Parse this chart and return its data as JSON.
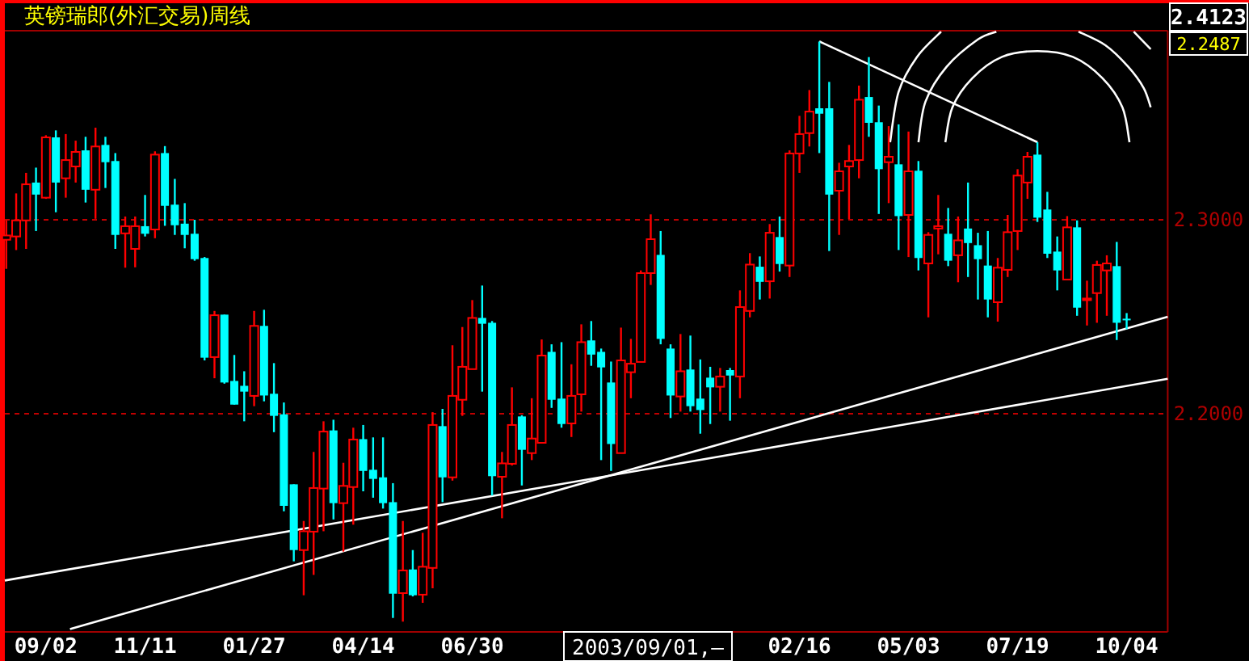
{
  "chart_data": {
    "type": "candlestick",
    "title": "英镑瑞郎(外汇交易)周线",
    "x": [
      "2002-08-05",
      "2002-08-12",
      "2002-08-19",
      "2002-08-26",
      "2002-09-02",
      "2002-09-09",
      "2002-09-16",
      "2002-09-23",
      "2002-09-30",
      "2002-10-07",
      "2002-10-14",
      "2002-10-21",
      "2002-10-28",
      "2002-11-04",
      "2002-11-11",
      "2002-11-18",
      "2002-11-25",
      "2002-12-02",
      "2002-12-09",
      "2002-12-16",
      "2002-12-23",
      "2002-12-30",
      "2003-01-06",
      "2003-01-13",
      "2003-01-20",
      "2003-01-27",
      "2003-02-03",
      "2003-02-10",
      "2003-02-17",
      "2003-02-24",
      "2003-03-03",
      "2003-03-10",
      "2003-03-17",
      "2003-03-24",
      "2003-03-31",
      "2003-04-07",
      "2003-04-14",
      "2003-04-21",
      "2003-04-28",
      "2003-05-05",
      "2003-05-12",
      "2003-05-19",
      "2003-05-26",
      "2003-06-02",
      "2003-06-09",
      "2003-06-16",
      "2003-06-23",
      "2003-06-30",
      "2003-07-07",
      "2003-07-14",
      "2003-07-21",
      "2003-07-28",
      "2003-08-04",
      "2003-08-11",
      "2003-08-18",
      "2003-08-25",
      "2003-09-01",
      "2003-09-08",
      "2003-09-15",
      "2003-09-22",
      "2003-09-29",
      "2003-10-06",
      "2003-10-13",
      "2003-10-20",
      "2003-10-27",
      "2003-11-03",
      "2003-11-10",
      "2003-11-17",
      "2003-11-24",
      "2003-12-01",
      "2003-12-08",
      "2003-12-15",
      "2003-12-22",
      "2003-12-29",
      "2004-01-05",
      "2004-01-12",
      "2004-01-19",
      "2004-01-26",
      "2004-02-02",
      "2004-02-09",
      "2004-02-16",
      "2004-02-23",
      "2004-03-01",
      "2004-03-08",
      "2004-03-15",
      "2004-03-22",
      "2004-03-29",
      "2004-04-05",
      "2004-04-12",
      "2004-04-19",
      "2004-04-26",
      "2004-05-03",
      "2004-05-10",
      "2004-05-17",
      "2004-05-24",
      "2004-05-31",
      "2004-06-07",
      "2004-06-14",
      "2004-06-21",
      "2004-06-28",
      "2004-07-05",
      "2004-07-12",
      "2004-07-19",
      "2004-07-26",
      "2004-08-02",
      "2004-08-09",
      "2004-08-16",
      "2004-08-23",
      "2004-08-30",
      "2004-09-06",
      "2004-09-13",
      "2004-09-20",
      "2004-09-27",
      "2004-10-04"
    ],
    "ohlc": [
      [
        2.2897,
        2.2997,
        2.2747,
        2.2919
      ],
      [
        2.2914,
        2.3136,
        2.2844,
        2.2997
      ],
      [
        2.2997,
        2.3242,
        2.285,
        2.3183
      ],
      [
        2.3192,
        2.3269,
        2.2942,
        2.313
      ],
      [
        2.3114,
        2.3436,
        2.3108,
        2.3425
      ],
      [
        2.3425,
        2.3461,
        2.3039,
        2.3192
      ],
      [
        2.3214,
        2.3442,
        2.3114,
        2.3308
      ],
      [
        2.3275,
        2.3408,
        2.3192,
        2.335
      ],
      [
        2.3358,
        2.3428,
        2.3089,
        2.3155
      ],
      [
        2.3155,
        2.3475,
        2.3005,
        2.3378
      ],
      [
        2.3386,
        2.3428,
        2.3164,
        2.3297
      ],
      [
        2.3303,
        2.3344,
        2.285,
        2.2922
      ],
      [
        2.293,
        2.3017,
        2.2753,
        2.2967
      ],
      [
        2.285,
        2.3017,
        2.2755,
        2.2967
      ],
      [
        2.2967,
        2.3128,
        2.2914,
        2.2928
      ],
      [
        2.295,
        2.3353,
        2.2905,
        2.3336
      ],
      [
        2.3344,
        2.338,
        2.2969,
        2.3072
      ],
      [
        2.3078,
        2.3211,
        2.2922,
        2.2972
      ],
      [
        2.298,
        2.3086,
        2.2853,
        2.2922
      ],
      [
        2.2928,
        2.3,
        2.2789,
        2.2797
      ],
      [
        2.2803,
        2.2808,
        2.2275,
        2.2289
      ],
      [
        2.2292,
        2.253,
        2.2183,
        2.2508
      ],
      [
        2.2511,
        2.2511,
        2.2155,
        2.2161
      ],
      [
        2.2169,
        2.2303,
        2.2047,
        2.2047
      ],
      [
        2.2144,
        2.2219,
        2.1961,
        2.2114
      ],
      [
        2.2092,
        2.253,
        2.2039,
        2.2453
      ],
      [
        2.2453,
        2.2536,
        2.2064,
        2.2094
      ],
      [
        2.2103,
        2.2261,
        2.1905,
        2.1989
      ],
      [
        2.1997,
        2.2058,
        2.1497,
        2.1525
      ],
      [
        2.1636,
        2.1636,
        2.1239,
        2.1297
      ],
      [
        2.1297,
        2.1447,
        2.1064,
        2.1394
      ],
      [
        2.1392,
        2.1803,
        2.1169,
        2.1617
      ],
      [
        2.1614,
        2.1961,
        2.1394,
        2.1908
      ],
      [
        2.1914,
        2.1969,
        2.1455,
        2.1539
      ],
      [
        2.1539,
        2.1747,
        2.1289,
        2.1628
      ],
      [
        2.1622,
        2.1928,
        2.1428,
        2.1867
      ],
      [
        2.1869,
        2.1942,
        2.16,
        2.1705
      ],
      [
        2.1711,
        2.1878,
        2.1567,
        2.1664
      ],
      [
        2.1672,
        2.1878,
        2.1511,
        2.1539
      ],
      [
        2.1544,
        2.1642,
        2.0947,
        2.1072
      ],
      [
        2.1075,
        2.1447,
        2.0928,
        2.1192
      ],
      [
        2.1197,
        2.1297,
        2.1058,
        2.1064
      ],
      [
        2.1067,
        2.1386,
        2.1025,
        2.1211
      ],
      [
        2.1205,
        2.2008,
        2.11,
        2.1942
      ],
      [
        2.1936,
        2.2025,
        2.1544,
        2.1672
      ],
      [
        2.1672,
        2.2353,
        2.1655,
        2.2092
      ],
      [
        2.2072,
        2.2447,
        2.1989,
        2.2242
      ],
      [
        2.223,
        2.2586,
        2.223,
        2.2494
      ],
      [
        2.2494,
        2.2661,
        2.2114,
        2.2464
      ],
      [
        2.2469,
        2.2478,
        2.1578,
        2.1678
      ],
      [
        2.1675,
        2.1803,
        2.1461,
        2.1744
      ],
      [
        2.1742,
        2.2136,
        2.1733,
        2.1942
      ],
      [
        2.1986,
        2.1992,
        2.163,
        2.1814
      ],
      [
        2.1797,
        2.208,
        2.1761,
        2.1872
      ],
      [
        2.185,
        2.2383,
        2.185,
        2.23
      ],
      [
        2.2319,
        2.2358,
        2.203,
        2.2072
      ],
      [
        2.2078,
        2.2369,
        2.1928,
        2.1947
      ],
      [
        2.195,
        2.2255,
        2.188,
        2.2092
      ],
      [
        2.21,
        2.2461,
        2.2011,
        2.2369
      ],
      [
        2.2378,
        2.2478,
        2.2247,
        2.2305
      ],
      [
        2.2319,
        2.2336,
        2.1761,
        2.2239
      ],
      [
        2.2161,
        2.2269,
        2.1705,
        2.1844
      ],
      [
        2.1797,
        2.2444,
        2.1797,
        2.2275
      ],
      [
        2.2214,
        2.2386,
        2.208,
        2.2258
      ],
      [
        2.2267,
        2.2739,
        2.2267,
        2.2725
      ],
      [
        2.2725,
        2.3028,
        2.2664,
        2.29
      ],
      [
        2.2819,
        2.2942,
        2.2358,
        2.2386
      ],
      [
        2.2336,
        2.2358,
        2.1978,
        2.2094
      ],
      [
        2.2089,
        2.2411,
        2.2011,
        2.2219
      ],
      [
        2.2228,
        2.2403,
        2.2011,
        2.2039
      ],
      [
        2.2078,
        2.228,
        2.1897,
        2.2019
      ],
      [
        2.2186,
        2.2242,
        2.1947,
        2.2136
      ],
      [
        2.2139,
        2.2236,
        2.2011,
        2.2192
      ],
      [
        2.2225,
        2.2236,
        2.1964,
        2.2197
      ],
      [
        2.2192,
        2.2636,
        2.208,
        2.255
      ],
      [
        2.253,
        2.2828,
        2.2497,
        2.2769
      ],
      [
        2.2758,
        2.2811,
        2.2589,
        2.268
      ],
      [
        2.2683,
        2.2978,
        2.2594,
        2.2933
      ],
      [
        2.2911,
        2.3017,
        2.2733,
        2.2772
      ],
      [
        2.2764,
        2.3358,
        2.2705,
        2.3342
      ],
      [
        2.3342,
        2.3536,
        2.3242,
        2.3442
      ],
      [
        2.3447,
        2.3669,
        2.3378,
        2.3558
      ],
      [
        2.3575,
        2.3919,
        2.3344,
        2.3547
      ],
      [
        2.3575,
        2.3711,
        2.2839,
        2.313
      ],
      [
        2.315,
        2.3294,
        2.2922,
        2.325
      ],
      [
        2.3275,
        2.3386,
        2.3003,
        2.3303
      ],
      [
        2.3308,
        2.3692,
        2.3214,
        2.3619
      ],
      [
        2.3633,
        2.3839,
        2.3428,
        2.35
      ],
      [
        2.3503,
        2.3589,
        2.303,
        2.3261
      ],
      [
        2.3297,
        2.3483,
        2.3086,
        2.3325
      ],
      [
        2.3286,
        2.3492,
        2.2844,
        2.3019
      ],
      [
        2.3025,
        2.3455,
        2.2808,
        2.325
      ],
      [
        2.3253,
        2.3303,
        2.2739,
        2.2803
      ],
      [
        2.2775,
        2.2936,
        2.2497,
        2.2922
      ],
      [
        2.2955,
        2.3128,
        2.2822,
        2.2967
      ],
      [
        2.2928,
        2.3061,
        2.2761,
        2.2789
      ],
      [
        2.2817,
        2.3017,
        2.2678,
        2.2894
      ],
      [
        2.2955,
        2.3192,
        2.2705,
        2.288
      ],
      [
        2.2869,
        2.2933,
        2.2589,
        2.2797
      ],
      [
        2.2764,
        2.2942,
        2.2497,
        2.2589
      ],
      [
        2.2575,
        2.2803,
        2.2475,
        2.2753
      ],
      [
        2.2742,
        2.3025,
        2.2705,
        2.2936
      ],
      [
        2.2942,
        2.3261,
        2.2844,
        2.3228
      ],
      [
        2.3192,
        2.335,
        2.3108,
        2.3325
      ],
      [
        2.3336,
        2.34,
        2.2989,
        2.3011
      ],
      [
        2.3053,
        2.3144,
        2.2803,
        2.2825
      ],
      [
        2.2836,
        2.2914,
        2.2636,
        2.2739
      ],
      [
        2.2692,
        2.3019,
        2.2692,
        2.2961
      ],
      [
        2.2961,
        2.2997,
        2.2505,
        2.2547
      ],
      [
        2.2586,
        2.2686,
        2.2455,
        2.2594
      ],
      [
        2.2622,
        2.2789,
        2.2469,
        2.2767
      ],
      [
        2.2739,
        2.2817,
        2.2505,
        2.2775
      ],
      [
        2.2761,
        2.2886,
        2.238,
        2.2469
      ],
      [
        2.249,
        2.2519,
        2.2436,
        2.2487
      ]
    ],
    "colors": [
      "#ff0000",
      "#ff0000",
      "#ff0000",
      "#00ffff",
      "#ff0000",
      "#00ffff",
      "#ff0000",
      "#ff0000",
      "#00ffff",
      "#ff0000",
      "#00ffff",
      "#00ffff",
      "#ff0000",
      "#ff0000",
      "#00ffff",
      "#ff0000",
      "#00ffff",
      "#00ffff",
      "#00ffff",
      "#00ffff",
      "#00ffff",
      "#ff0000",
      "#00ffff",
      "#00ffff",
      "#00ffff",
      "#ff0000",
      "#00ffff",
      "#00ffff",
      "#00ffff",
      "#00ffff",
      "#ff0000",
      "#ff0000",
      "#ff0000",
      "#00ffff",
      "#ff0000",
      "#ff0000",
      "#00ffff",
      "#00ffff",
      "#00ffff",
      "#00ffff",
      "#ff0000",
      "#00ffff",
      "#ff0000",
      "#ff0000",
      "#00ffff",
      "#ff0000",
      "#ff0000",
      "#ff0000",
      "#00ffff",
      "#00ffff",
      "#ff0000",
      "#ff0000",
      "#00ffff",
      "#ff0000",
      "#ff0000",
      "#00ffff",
      "#00ffff",
      "#ff0000",
      "#ff0000",
      "#00ffff",
      "#00ffff",
      "#00ffff",
      "#ff0000",
      "#ff0000",
      "#ff0000",
      "#ff0000",
      "#00ffff",
      "#00ffff",
      "#ff0000",
      "#00ffff",
      "#00ffff",
      "#00ffff",
      "#ff0000",
      "#00ffff",
      "#ff0000",
      "#ff0000",
      "#00ffff",
      "#ff0000",
      "#00ffff",
      "#ff0000",
      "#ff0000",
      "#ff0000",
      "#00ffff",
      "#00ffff",
      "#ff0000",
      "#ff0000",
      "#ff0000",
      "#00ffff",
      "#00ffff",
      "#ff0000",
      "#00ffff",
      "#ff0000",
      "#00ffff",
      "#ff0000",
      "#ff0000",
      "#00ffff",
      "#ff0000",
      "#00ffff",
      "#00ffff",
      "#00ffff",
      "#ff0000",
      "#ff0000",
      "#ff0000",
      "#ff0000",
      "#00ffff",
      "#00ffff",
      "#00ffff",
      "#ff0000",
      "#00ffff",
      "#ff0000",
      "#ff0000",
      "#ff0000",
      "#00ffff",
      "#00ffff"
    ],
    "series": [
      {
        "type": "line",
        "color": "#ffffff",
        "x": [
          "2002-08-04",
          "2004-11-02"
        ],
        "values": [
          2.114,
          2.218
        ]
      },
      {
        "type": "line",
        "color": "#ffffff",
        "x": [
          "2002-09-19",
          "2004-11-02"
        ],
        "values": [
          2.089,
          2.25
        ]
      },
      {
        "type": "line",
        "color": "#ffffff",
        "x": [
          "2004-03-01",
          "2004-08-02"
        ],
        "values": [
          2.392,
          2.34
        ]
      },
      {
        "type": "line",
        "color": "#ffffff",
        "x": [
          "2004-05-29",
          "2004-06-03",
          "2004-06-17",
          "2004-07-08",
          "2004-08-02",
          "2004-08-27",
          "2004-09-17",
          "2004-10-01",
          "2004-10-06"
        ],
        "values": [
          2.34,
          2.358,
          2.373,
          2.384,
          2.387,
          2.384,
          2.373,
          2.358,
          2.34
        ]
      },
      {
        "type": "line",
        "color": "#ffffff",
        "x": [
          "2004-05-10",
          "2004-05-15",
          "2004-05-30",
          "2004-06-21",
          "2004-07-04"
        ],
        "values": [
          2.34,
          2.361,
          2.379,
          2.393,
          2.397
        ]
      },
      {
        "type": "line",
        "color": "#ffffff",
        "x": [
          "2004-08-31",
          "2004-09-19",
          "2004-10-05",
          "2004-10-16",
          "2004-10-21"
        ],
        "values": [
          2.397,
          2.39,
          2.379,
          2.368,
          2.358
        ]
      },
      {
        "type": "line",
        "color": "#ffffff",
        "x": [
          "2004-04-20",
          "2004-04-26",
          "2004-05-09",
          "2004-05-26"
        ],
        "values": [
          2.34,
          2.366,
          2.384,
          2.397
        ]
      },
      {
        "type": "line",
        "color": "#ffffff",
        "x": [
          "2004-10-09",
          "2004-10-21"
        ],
        "values": [
          2.397,
          2.388
        ]
      }
    ],
    "xlim": [
      "2002-08-04",
      "2004-11-02"
    ],
    "xticks": [
      {
        "value": "2002-09-02",
        "label": "09/02"
      },
      {
        "value": "2002-11-11",
        "label": "11/11"
      },
      {
        "value": "2003-01-27",
        "label": "01/27"
      },
      {
        "value": "2003-04-14",
        "label": "04/14"
      },
      {
        "value": "2003-06-30",
        "label": "06/30"
      },
      {
        "value": "2004-02-16",
        "label": "02/16"
      },
      {
        "value": "2004-05-03",
        "label": "05/03"
      },
      {
        "value": "2004-07-19",
        "label": "07/19"
      },
      {
        "value": "2004-10-04",
        "label": "10/04"
      }
    ],
    "ylim": [
      2.0875,
      2.3975
    ],
    "yticks": [
      {
        "value": 2.3,
        "label": "2.3000"
      },
      {
        "value": 2.2,
        "label": "2.2000"
      }
    ],
    "grid": "y",
    "annotations": [
      "2.4123",
      "2.2487",
      "2003/09/01,—"
    ]
  }
}
